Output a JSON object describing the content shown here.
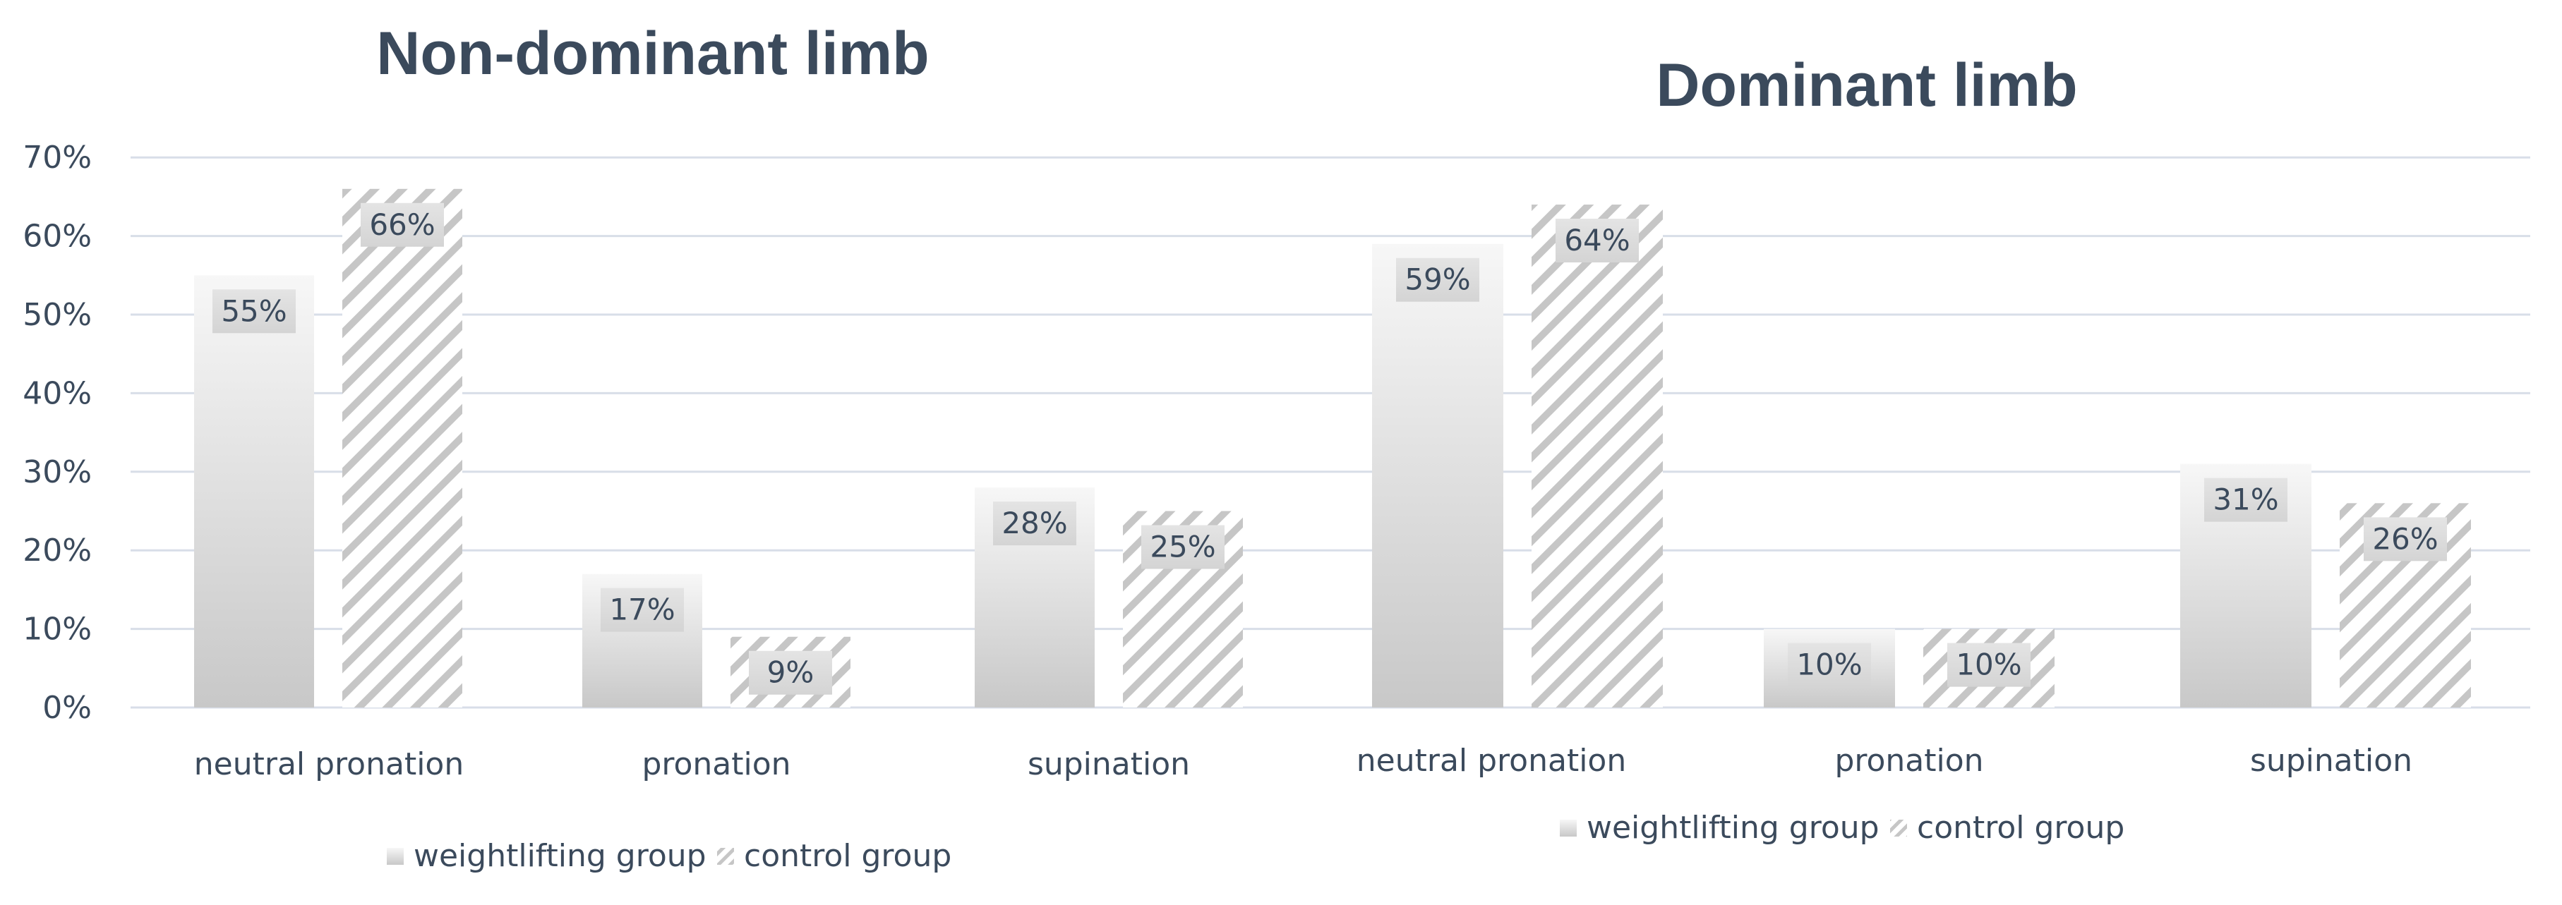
{
  "chart_data": [
    {
      "type": "bar",
      "title": "Non-dominant limb",
      "categories": [
        "neutral pronation",
        "pronation",
        "supination"
      ],
      "series": [
        {
          "name": "weightlifting group",
          "values": [
            55,
            17,
            28
          ],
          "labels": [
            "55%",
            "17%",
            "28%"
          ]
        },
        {
          "name": "control group",
          "values": [
            66,
            9,
            25
          ],
          "labels": [
            "66%",
            "9%",
            "25%"
          ]
        }
      ],
      "yticks": [
        "0%",
        "10%",
        "20%",
        "30%",
        "40%",
        "50%",
        "60%",
        "70%"
      ],
      "ylim": [
        0,
        70
      ],
      "grid": true,
      "legend_position": "bottom"
    },
    {
      "type": "bar",
      "title": "Dominant limb",
      "categories": [
        "neutral pronation",
        "pronation",
        "supination"
      ],
      "series": [
        {
          "name": "weightlifting group",
          "values": [
            59,
            10,
            31
          ],
          "labels": [
            "59%",
            "10%",
            "31%"
          ]
        },
        {
          "name": "control group",
          "values": [
            64,
            10,
            26
          ],
          "labels": [
            "64%",
            "10%",
            "26%"
          ]
        }
      ],
      "ylim": [
        0,
        70
      ],
      "grid": true,
      "legend_position": "bottom"
    }
  ],
  "colors": {
    "text": "#3b4a5c",
    "grid": "#d8dee8",
    "bar_light": "#f7f7f7",
    "bar_dark": "#c8c8c8",
    "hatch": "#c6c6c6",
    "label_box": "#d4d4d4"
  }
}
